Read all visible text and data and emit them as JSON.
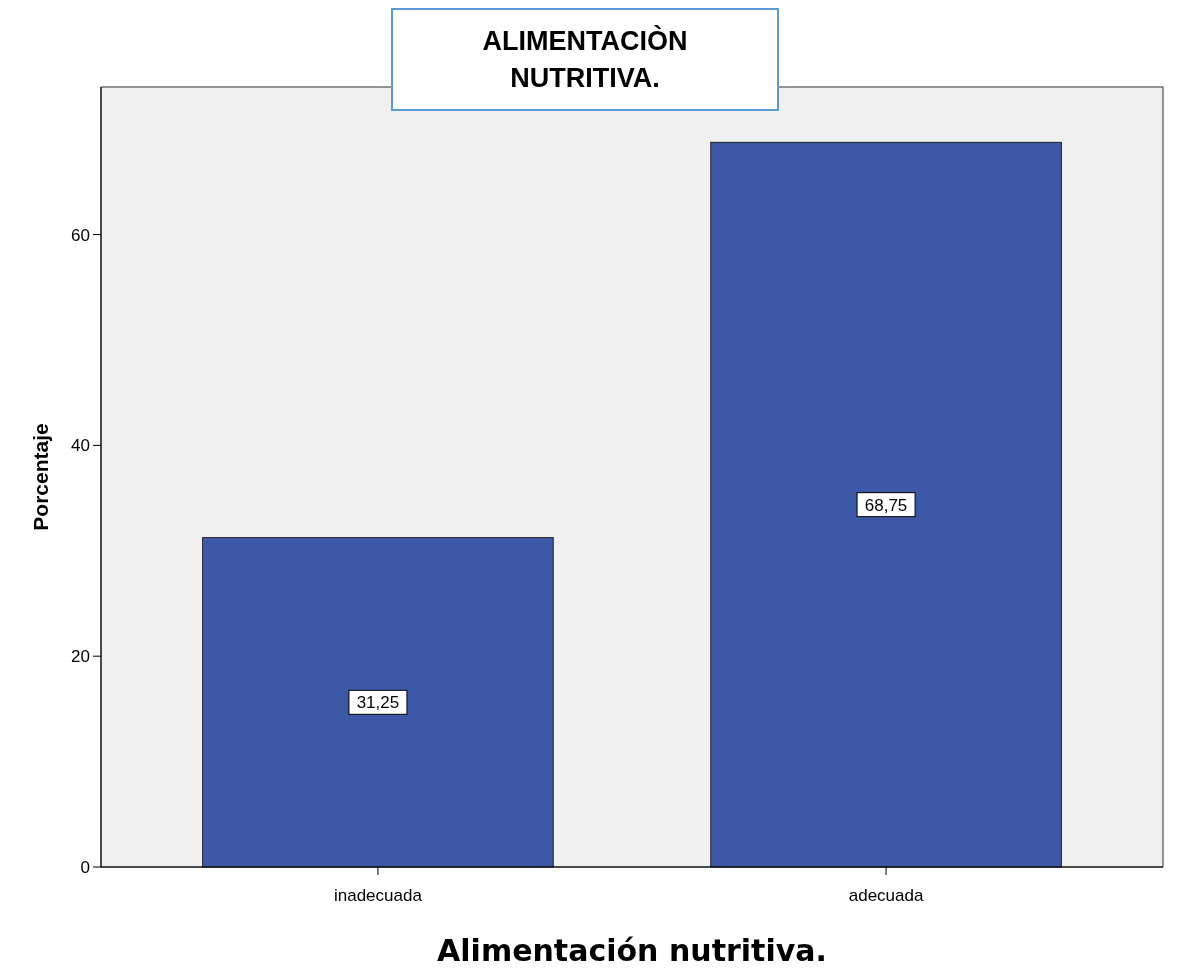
{
  "chart_data": {
    "type": "bar",
    "title": "ALIMENTACIÒN NUTRITIVA.",
    "xlabel": "Alimentación nutritiva.",
    "ylabel": "Porcentaje",
    "categories": [
      "inadecuada",
      "adecuada"
    ],
    "values": [
      31.25,
      68.75
    ],
    "value_labels": [
      "31,25",
      "68,75"
    ],
    "color": "#3e58a8",
    "ylim": [
      0,
      74
    ],
    "yticks": [
      0,
      20,
      40,
      60
    ],
    "grid": false
  }
}
